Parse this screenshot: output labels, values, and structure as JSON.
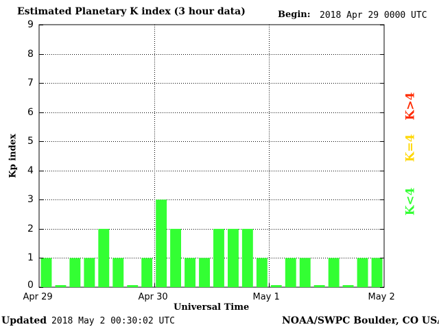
{
  "header": {
    "title": "Estimated Planetary K index (3 hour data)",
    "begin_label": "Begin:",
    "begin_value": "2018 Apr 29 0000 UTC"
  },
  "footer": {
    "updated_label": "Updated",
    "updated_value": "2018 May  2 00:30:02 UTC",
    "credit": "NOAA/SWPC Boulder, CO USA"
  },
  "legend": {
    "above": "K>4",
    "equal": "K=4",
    "below": "K<4",
    "colors": {
      "above": "#ff2a00",
      "equal": "#ffd700",
      "below": "#33ff33"
    }
  },
  "chart_data": {
    "type": "bar",
    "ylabel": "Kp index",
    "xlabel": "Universal Time",
    "ylim": [
      0,
      9
    ],
    "yticks": [
      0,
      1,
      2,
      3,
      4,
      5,
      6,
      7,
      8,
      9
    ],
    "x_tick_labels": [
      "Apr 29",
      "Apr 30",
      "May 1",
      "May 2"
    ],
    "values": [
      1,
      0.07,
      1,
      1,
      2,
      1,
      0.07,
      1,
      3,
      2,
      1,
      1,
      2,
      2,
      2,
      1,
      0.07,
      1,
      1,
      0.07,
      1,
      0.07,
      1,
      1
    ],
    "bar_color": "#33ff33",
    "grid": true
  }
}
